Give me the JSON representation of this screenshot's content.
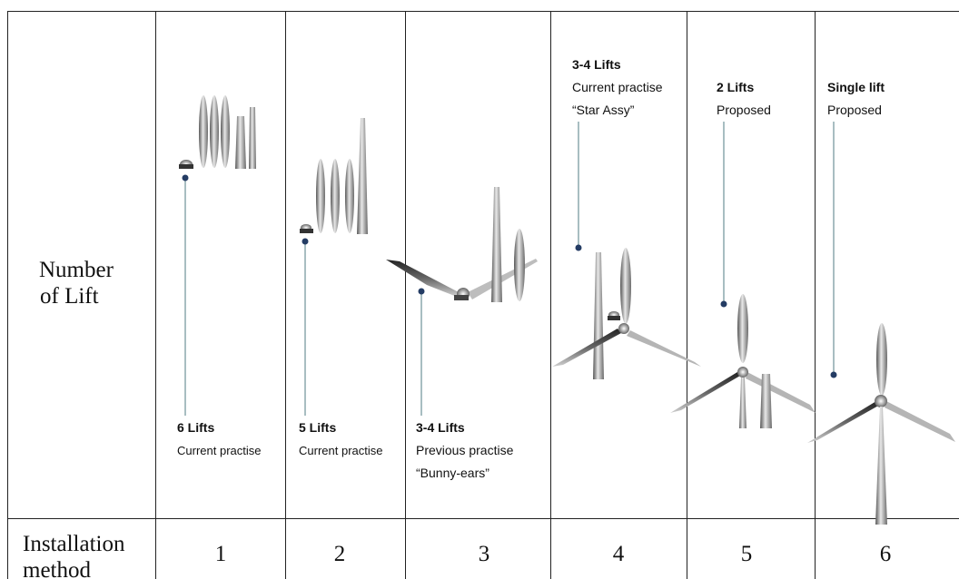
{
  "row_labels": {
    "number_of_lift_line1": "Number",
    "number_of_lift_line2": "of Lift",
    "installation_method_line1": "Installation",
    "installation_method_line2": "method"
  },
  "methods": [
    {
      "number": "1",
      "lifts": "6 Lifts",
      "status": "Current practise",
      "name": ""
    },
    {
      "number": "2",
      "lifts": "5 Lifts",
      "status": "Current practise",
      "name": ""
    },
    {
      "number": "3",
      "lifts": "3-4 Lifts",
      "status": "Previous practise",
      "name": "“Bunny-ears”"
    },
    {
      "number": "4",
      "lifts": "3-4 Lifts",
      "status": "Current practise",
      "name": "“Star Assy”"
    },
    {
      "number": "5",
      "lifts": "2 Lifts",
      "status": "Proposed",
      "name": ""
    },
    {
      "number": "6",
      "lifts": "Single lift",
      "status": "Proposed",
      "name": ""
    }
  ],
  "colors": {
    "marker": "#243c64",
    "leader_line": "#7a9aa0",
    "component_gray": "#9a9a9a",
    "grid": "#222222"
  }
}
